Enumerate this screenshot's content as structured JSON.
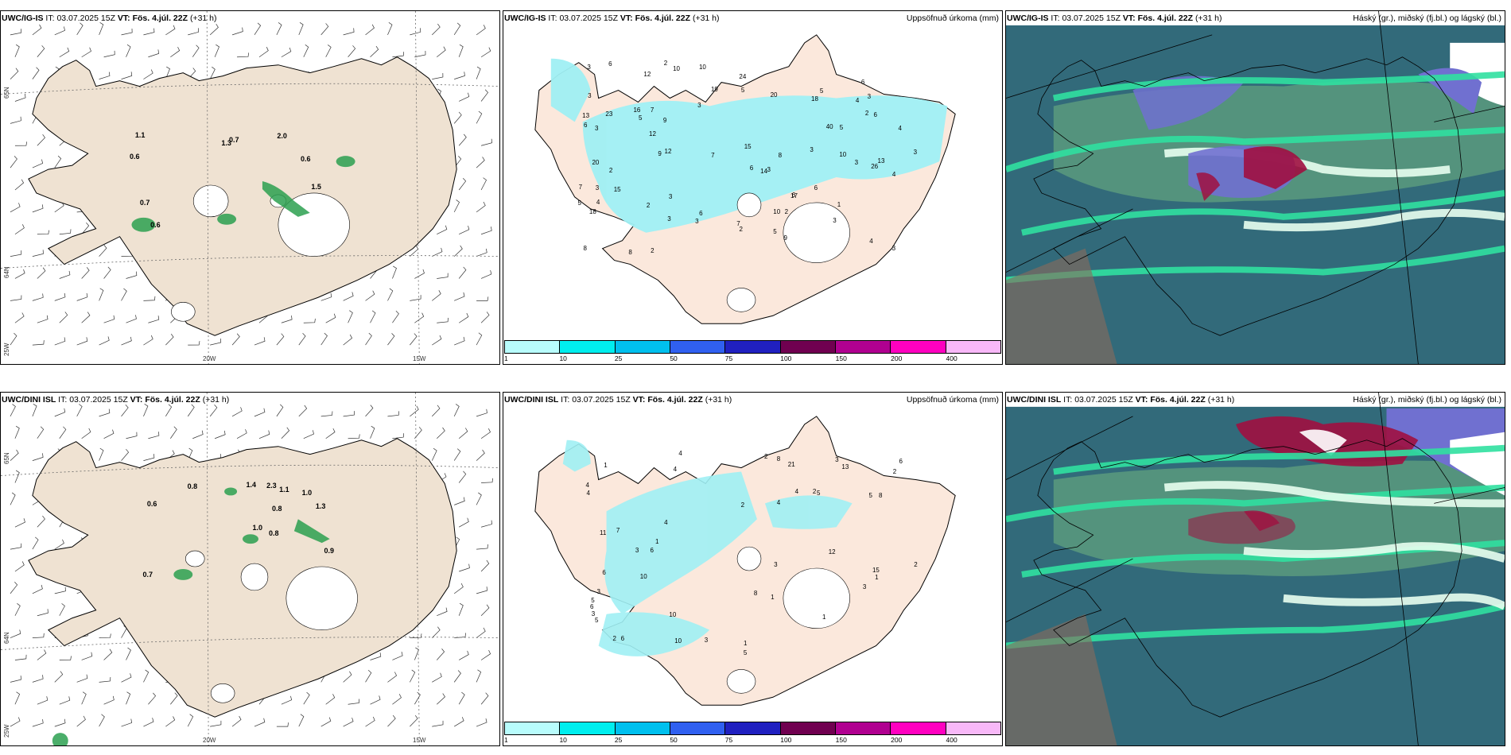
{
  "rows": [
    {
      "model": "UWC/IG-IS",
      "it_label": "IT:",
      "it_value": "03.07.2025 15Z",
      "vt_label": "VT:",
      "vt_value": "Fös. 4.júl. 22Z",
      "lead": "(+31 h)"
    },
    {
      "model": "UWC/DINI ISL",
      "it_label": "IT:",
      "it_value": "03.07.2025 15Z",
      "vt_label": "VT:",
      "vt_value": "Fös. 4.júl. 22Z",
      "lead": "(+31 h)"
    }
  ],
  "precip_panel": {
    "label": "Uppsöfnuð úrkoma (mm)",
    "colorbar": {
      "ticks": [
        "1",
        "10",
        "25",
        "50",
        "75",
        "100",
        "150",
        "200",
        "400"
      ],
      "colors": [
        "#b8fcfc",
        "#00eeee",
        "#00c0ee",
        "#3060f0",
        "#2020c0",
        "#700050",
        "#b00090",
        "#ff00c0",
        "#f8b8f8"
      ]
    },
    "land_color": "#fbe8dc",
    "precip_color": "#a0f0f4",
    "top_values": [
      "6",
      "3",
      "3",
      "4",
      "15",
      "6",
      "7",
      "5",
      "3",
      "3",
      "6",
      "4",
      "5",
      "3",
      "5",
      "3",
      "2",
      "3",
      "3",
      "6",
      "16",
      "2",
      "10",
      "3",
      "9",
      "13",
      "18",
      "7",
      "5",
      "6",
      "13",
      "8",
      "20",
      "3",
      "26",
      "9",
      "40",
      "10",
      "12",
      "24",
      "6",
      "6",
      "6",
      "3",
      "20",
      "12",
      "2",
      "4",
      "14",
      "8",
      "23",
      "3",
      "15",
      "9",
      "5",
      "4",
      "2",
      "7",
      "4",
      "17",
      "5",
      "10",
      "19",
      "12",
      "18",
      "3",
      "2",
      "2",
      "7",
      "10",
      "8",
      "3",
      "1",
      "3",
      "2"
    ],
    "bottom_values": [
      "6",
      "8",
      "2",
      "4",
      "5",
      "3",
      "1",
      "6",
      "4",
      "2",
      "1",
      "2",
      "21",
      "4",
      "6",
      "5",
      "10",
      "7",
      "8",
      "5",
      "4",
      "8",
      "3",
      "4",
      "13",
      "4",
      "6",
      "5",
      "11",
      "10",
      "15",
      "10",
      "12",
      "4",
      "6",
      "5",
      "3",
      "3",
      "3",
      "2",
      "3",
      "1",
      "1",
      "1",
      "2",
      "3",
      "2",
      "1"
    ]
  },
  "wind_panel": {
    "land_color": "#efe2d2",
    "grid_labels": {
      "left_top": "65N",
      "left_bottom": "64N",
      "left_bottom2": "25W",
      "bottom_mid": "20W",
      "bottom_right": "15W"
    },
    "top_values": [
      "0.7",
      "1.5",
      "0.6",
      "0.7",
      "1.3",
      "0.6",
      "1.1",
      "2.0",
      "0.6"
    ],
    "bottom_values": [
      "0.7",
      "1.1",
      "1.0",
      "1.3",
      "1.4",
      "2.3",
      "0.8",
      "0.9",
      "1.0",
      "0.8",
      "0.6",
      "0.8"
    ]
  },
  "cloud_panel": {
    "label": "Háský (gr.), miðský (fj.bl.) og lágský (bl.)",
    "colors": {
      "high": "#5a9a7e",
      "mid": "#7070d0",
      "low": "#2c5f74",
      "band": "#30e0a0",
      "hot": "#a01040",
      "snow": "#ffffff"
    }
  }
}
